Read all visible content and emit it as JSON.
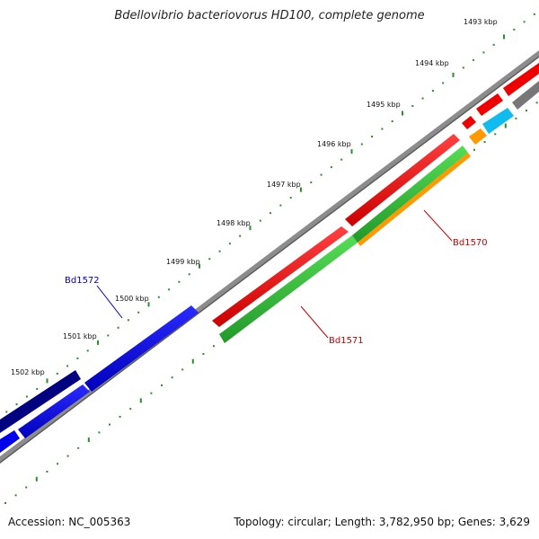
{
  "title": "Bdellovibrio bacteriovorus HD100, complete genome",
  "footer": {
    "accession": "Accession: NC_005363",
    "summary": "Topology: circular; Length: 3,782,950 bp; Genes: 3,629"
  },
  "colors": {
    "backbone": "#888888",
    "tick_dots": "#2e8b2e",
    "label_blue": "#0000cc",
    "label_red": "#cc0000",
    "gene_red": "#ee0000",
    "gene_green": "#33bb33",
    "gene_orange": "#ff9900",
    "gene_blue": "#0000ee",
    "gene_navy": "#000080",
    "gene_cyan": "#11bbee",
    "gene_gray": "#777777"
  },
  "ticks": [
    {
      "label": "1493 kbp"
    },
    {
      "label": "1494 kbp"
    },
    {
      "label": "1495 kbp"
    },
    {
      "label": "1496 kbp"
    },
    {
      "label": "1497 kbp"
    },
    {
      "label": "1498 kbp"
    },
    {
      "label": "1499 kbp"
    },
    {
      "label": "1500 kbp"
    },
    {
      "label": "1501 kbp"
    },
    {
      "label": "1502 kbp"
    }
  ],
  "gene_labels": [
    {
      "name": "Bd1572",
      "color": "blue"
    },
    {
      "name": "Bd1570",
      "color": "red"
    },
    {
      "name": "Bd1571",
      "color": "red"
    }
  ]
}
